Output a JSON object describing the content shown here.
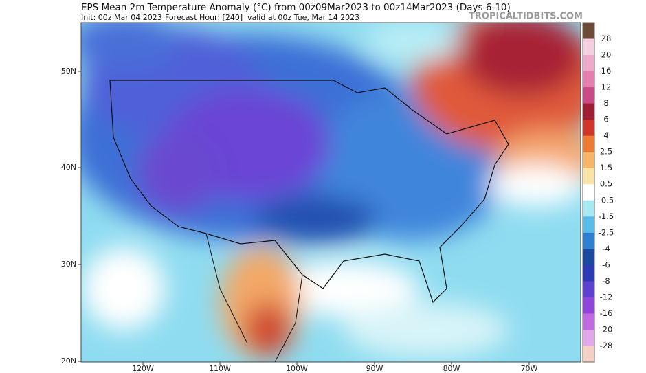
{
  "header": {
    "title": "EPS Mean 2m Temperature Anomaly (°C) from 00z09Mar2023 to 00z14Mar2023 (Days 6-10)",
    "init": "Init: 00z Mar 04 2023",
    "forecast_hour": "Forecast Hour: [240]",
    "valid": "valid at 00z Tue, Mar 14 2023",
    "watermark": "TROPICALTIDBITS.COM"
  },
  "map": {
    "lat_labels": [
      "50N",
      "40N",
      "30N",
      "20N"
    ],
    "lon_labels": [
      "120W",
      "110W",
      "100W",
      "90W",
      "80W",
      "70W"
    ]
  },
  "colorbar": {
    "ticks": [
      28,
      20,
      16,
      12,
      8,
      6,
      4,
      2.5,
      1.5,
      0.5,
      -0.5,
      -1.5,
      -2.5,
      -4,
      -6,
      -8,
      -12,
      -16,
      -20,
      -28
    ],
    "colors": [
      "#6e4a38",
      "#f3cfe0",
      "#eeaacb",
      "#e57fb0",
      "#c94a86",
      "#9e1d35",
      "#d2352a",
      "#ef7a32",
      "#f7b565",
      "#fae3a6",
      "#ffffff",
      "#a6e9f3",
      "#58bde9",
      "#2f7fd3",
      "#1a4aa0",
      "#2c3ab5",
      "#5e40d2",
      "#8f45dc",
      "#c06be2",
      "#e2a7ea",
      "#f3cfc6"
    ]
  }
}
